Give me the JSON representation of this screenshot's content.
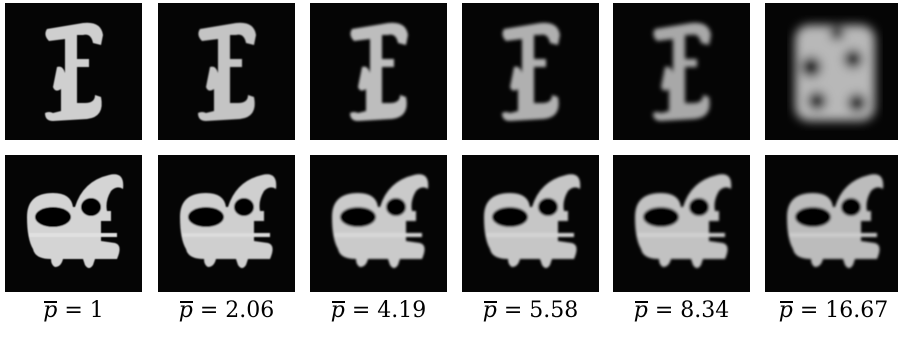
{
  "columns": [
    {
      "caption_sym": "p",
      "caption_eq": " = ",
      "caption_val": "1"
    },
    {
      "caption_sym": "p",
      "caption_eq": " = ",
      "caption_val": "2.06"
    },
    {
      "caption_sym": "p",
      "caption_eq": " = ",
      "caption_val": "4.19"
    },
    {
      "caption_sym": "p",
      "caption_eq": " = ",
      "caption_val": "5.58"
    },
    {
      "caption_sym": "p",
      "caption_eq": " = ",
      "caption_val": "8.34"
    },
    {
      "caption_sym": "p",
      "caption_eq": " = ",
      "caption_val": "16.67"
    }
  ],
  "colors": {
    "background": "#050505",
    "glyph": "#cfcfcf",
    "caption": "#000000"
  }
}
